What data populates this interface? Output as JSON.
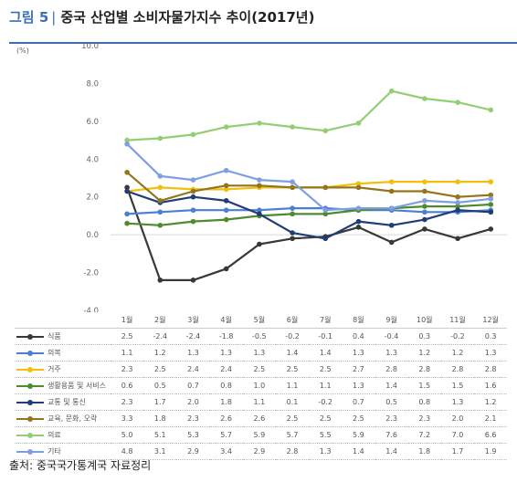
{
  "header": {
    "fig_label": "그림 5",
    "fig_separator": "|",
    "title": "중국 산업별 소비자물가지수 추이(2017년)"
  },
  "source": "출처: 중국국가통계국 자료정리",
  "chart_data": {
    "type": "line",
    "title": "중국 산업별 소비자물가지수 추이(2017년)",
    "ylabel": "(%)",
    "ylim": [
      -4.0,
      10.0
    ],
    "yticks": [
      "10.0",
      "8.0",
      "6.0",
      "4.0",
      "2.0",
      "0.0",
      "-2.0",
      "-4.0"
    ],
    "categories": [
      "1월",
      "2월",
      "3월",
      "4월",
      "5월",
      "6월",
      "7월",
      "8월",
      "9월",
      "10월",
      "11월",
      "12월"
    ],
    "grid": false,
    "legend": "table-below",
    "series": [
      {
        "name": "식품",
        "color": "#383838",
        "values": [
          2.5,
          -2.4,
          -2.4,
          -1.8,
          -0.5,
          -0.2,
          -0.1,
          0.4,
          -0.4,
          0.3,
          -0.2,
          0.3
        ],
        "display": [
          "2.5",
          "-2.4",
          "-2.4",
          "-1.8",
          "-0.5",
          "-0.2",
          "-0.1",
          "0.4",
          "-0.4",
          "0.3",
          "-0.2",
          "0.3"
        ]
      },
      {
        "name": "의복",
        "color": "#4a7fd4",
        "values": [
          1.1,
          1.2,
          1.3,
          1.3,
          1.3,
          1.4,
          1.4,
          1.3,
          1.3,
          1.2,
          1.2,
          1.3
        ],
        "display": [
          "1.1",
          "1.2",
          "1.3",
          "1.3",
          "1.3",
          "1.4",
          "1.4",
          "1.3",
          "1.3",
          "1.2",
          "1.2",
          "1.3"
        ]
      },
      {
        "name": "거주",
        "color": "#f2bf0f",
        "values": [
          2.3,
          2.5,
          2.4,
          2.4,
          2.5,
          2.5,
          2.5,
          2.7,
          2.8,
          2.8,
          2.8,
          2.8
        ],
        "display": [
          "2.3",
          "2.5",
          "2.4",
          "2.4",
          "2.5",
          "2.5",
          "2.5",
          "2.7",
          "2.8",
          "2.8",
          "2.8",
          "2.8"
        ]
      },
      {
        "name": "생활용품 및 서비스",
        "color": "#4e8a2e",
        "values": [
          0.6,
          0.5,
          0.7,
          0.8,
          1.0,
          1.1,
          1.1,
          1.3,
          1.4,
          1.5,
          1.5,
          1.6
        ],
        "display": [
          "0.6",
          "0.5",
          "0.7",
          "0.8",
          "1.0",
          "1.1",
          "1.1",
          "1.3",
          "1.4",
          "1.5",
          "1.5",
          "1.6"
        ]
      },
      {
        "name": "교통 및 통신",
        "color": "#1f3d7a",
        "values": [
          2.3,
          1.7,
          2.0,
          1.8,
          1.1,
          0.1,
          -0.2,
          0.7,
          0.5,
          0.8,
          1.3,
          1.2
        ],
        "display": [
          "2.3",
          "1.7",
          "2.0",
          "1.8",
          "1.1",
          "0.1",
          "-0.2",
          "0.7",
          "0.5",
          "0.8",
          "1.3",
          "1.2"
        ]
      },
      {
        "name": "교육, 문화, 오락",
        "color": "#94751d",
        "values": [
          3.3,
          1.8,
          2.3,
          2.6,
          2.6,
          2.5,
          2.5,
          2.5,
          2.3,
          2.3,
          2.0,
          2.1
        ],
        "display": [
          "3.3",
          "1.8",
          "2.3",
          "2.6",
          "2.6",
          "2.5",
          "2.5",
          "2.5",
          "2.3",
          "2.3",
          "2.0",
          "2.1"
        ]
      },
      {
        "name": "의료",
        "color": "#92cf72",
        "values": [
          5.0,
          5.1,
          5.3,
          5.7,
          5.9,
          5.7,
          5.5,
          5.9,
          7.6,
          7.2,
          7.0,
          6.6
        ],
        "display": [
          "5.0",
          "5.1",
          "5.3",
          "5.7",
          "5.9",
          "5.7",
          "5.5",
          "5.9",
          "7.6",
          "7.2",
          "7.0",
          "6.6"
        ]
      },
      {
        "name": "기타",
        "color": "#7f9fe0",
        "values": [
          4.8,
          3.1,
          2.9,
          3.4,
          2.9,
          2.8,
          1.3,
          1.4,
          1.4,
          1.8,
          1.7,
          1.9
        ],
        "display": [
          "4.8",
          "3.1",
          "2.9",
          "3.4",
          "2.9",
          "2.8",
          "1.3",
          "1.4",
          "1.4",
          "1.8",
          "1.7",
          "1.9"
        ]
      }
    ]
  }
}
